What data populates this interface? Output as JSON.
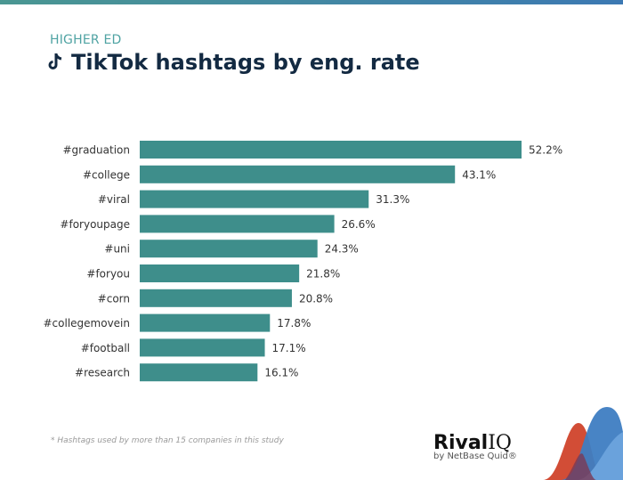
{
  "header": {
    "subtitle": "HIGHER ED",
    "title": "TikTok hashtags by eng. rate",
    "icon": "tiktok-icon"
  },
  "footnote": "* Hashtags used by more than 15 companies in this study",
  "logo": {
    "brand": "Rival",
    "brand2": "IQ",
    "tagline": "by NetBase Quid®"
  },
  "colors": {
    "bar": "#3e8e8b",
    "title": "#132a42",
    "subtitle": "#4fa3a3"
  },
  "chart_data": {
    "type": "bar",
    "orientation": "horizontal",
    "categories": [
      "#graduation",
      "#college",
      "#viral",
      "#foryoupage",
      "#uni",
      "#foryou",
      "#corn",
      "#collegemovein",
      "#football",
      "#research"
    ],
    "values": [
      52.2,
      43.1,
      31.3,
      26.6,
      24.3,
      21.8,
      20.8,
      17.8,
      17.1,
      16.1
    ],
    "data_labels": [
      "52.2%",
      "43.1%",
      "31.3%",
      "26.6%",
      "24.3%",
      "21.8%",
      "20.8%",
      "17.8%",
      "17.1%",
      "16.1%"
    ],
    "unit": "%",
    "grid": false
  }
}
